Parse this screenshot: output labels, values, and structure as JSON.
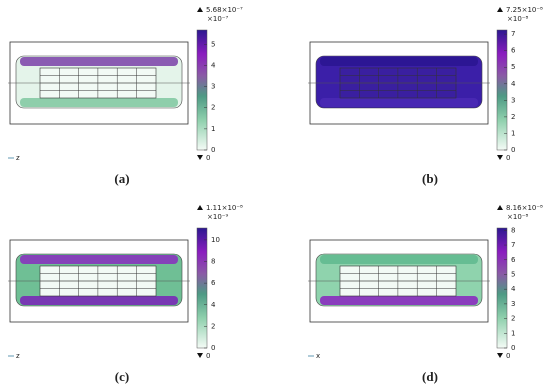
{
  "panels": [
    {
      "label": "(a)",
      "max_label": "5.68×10⁻⁷",
      "exponent": "×10⁻⁷",
      "min_label": "0",
      "range": [
        0,
        5.68
      ],
      "ticks": [
        0,
        1,
        2,
        3,
        4,
        5
      ],
      "axis_labels": [
        "z"
      ]
    },
    {
      "label": "(b)",
      "max_label": "7.25×10⁻⁸",
      "exponent": "×10⁻⁸",
      "min_label": "0",
      "range": [
        0,
        7.25
      ],
      "ticks": [
        0,
        1,
        2,
        3,
        4,
        5,
        6,
        7
      ],
      "axis_labels": []
    },
    {
      "label": "(c)",
      "max_label": "1.11×10⁻⁸",
      "exponent": "×10⁻⁹",
      "min_label": "0",
      "range": [
        0,
        11.1
      ],
      "ticks": [
        0,
        2,
        4,
        6,
        8,
        10
      ],
      "axis_labels": [
        "z"
      ]
    },
    {
      "label": "(d)",
      "max_label": "8.16×10⁻⁸",
      "exponent": "×10⁻⁸",
      "min_label": "0",
      "range": [
        0,
        8.16
      ],
      "ticks": [
        0,
        1,
        2,
        3,
        4,
        5,
        6,
        7,
        8
      ],
      "axis_labels": [
        "x"
      ]
    }
  ]
}
